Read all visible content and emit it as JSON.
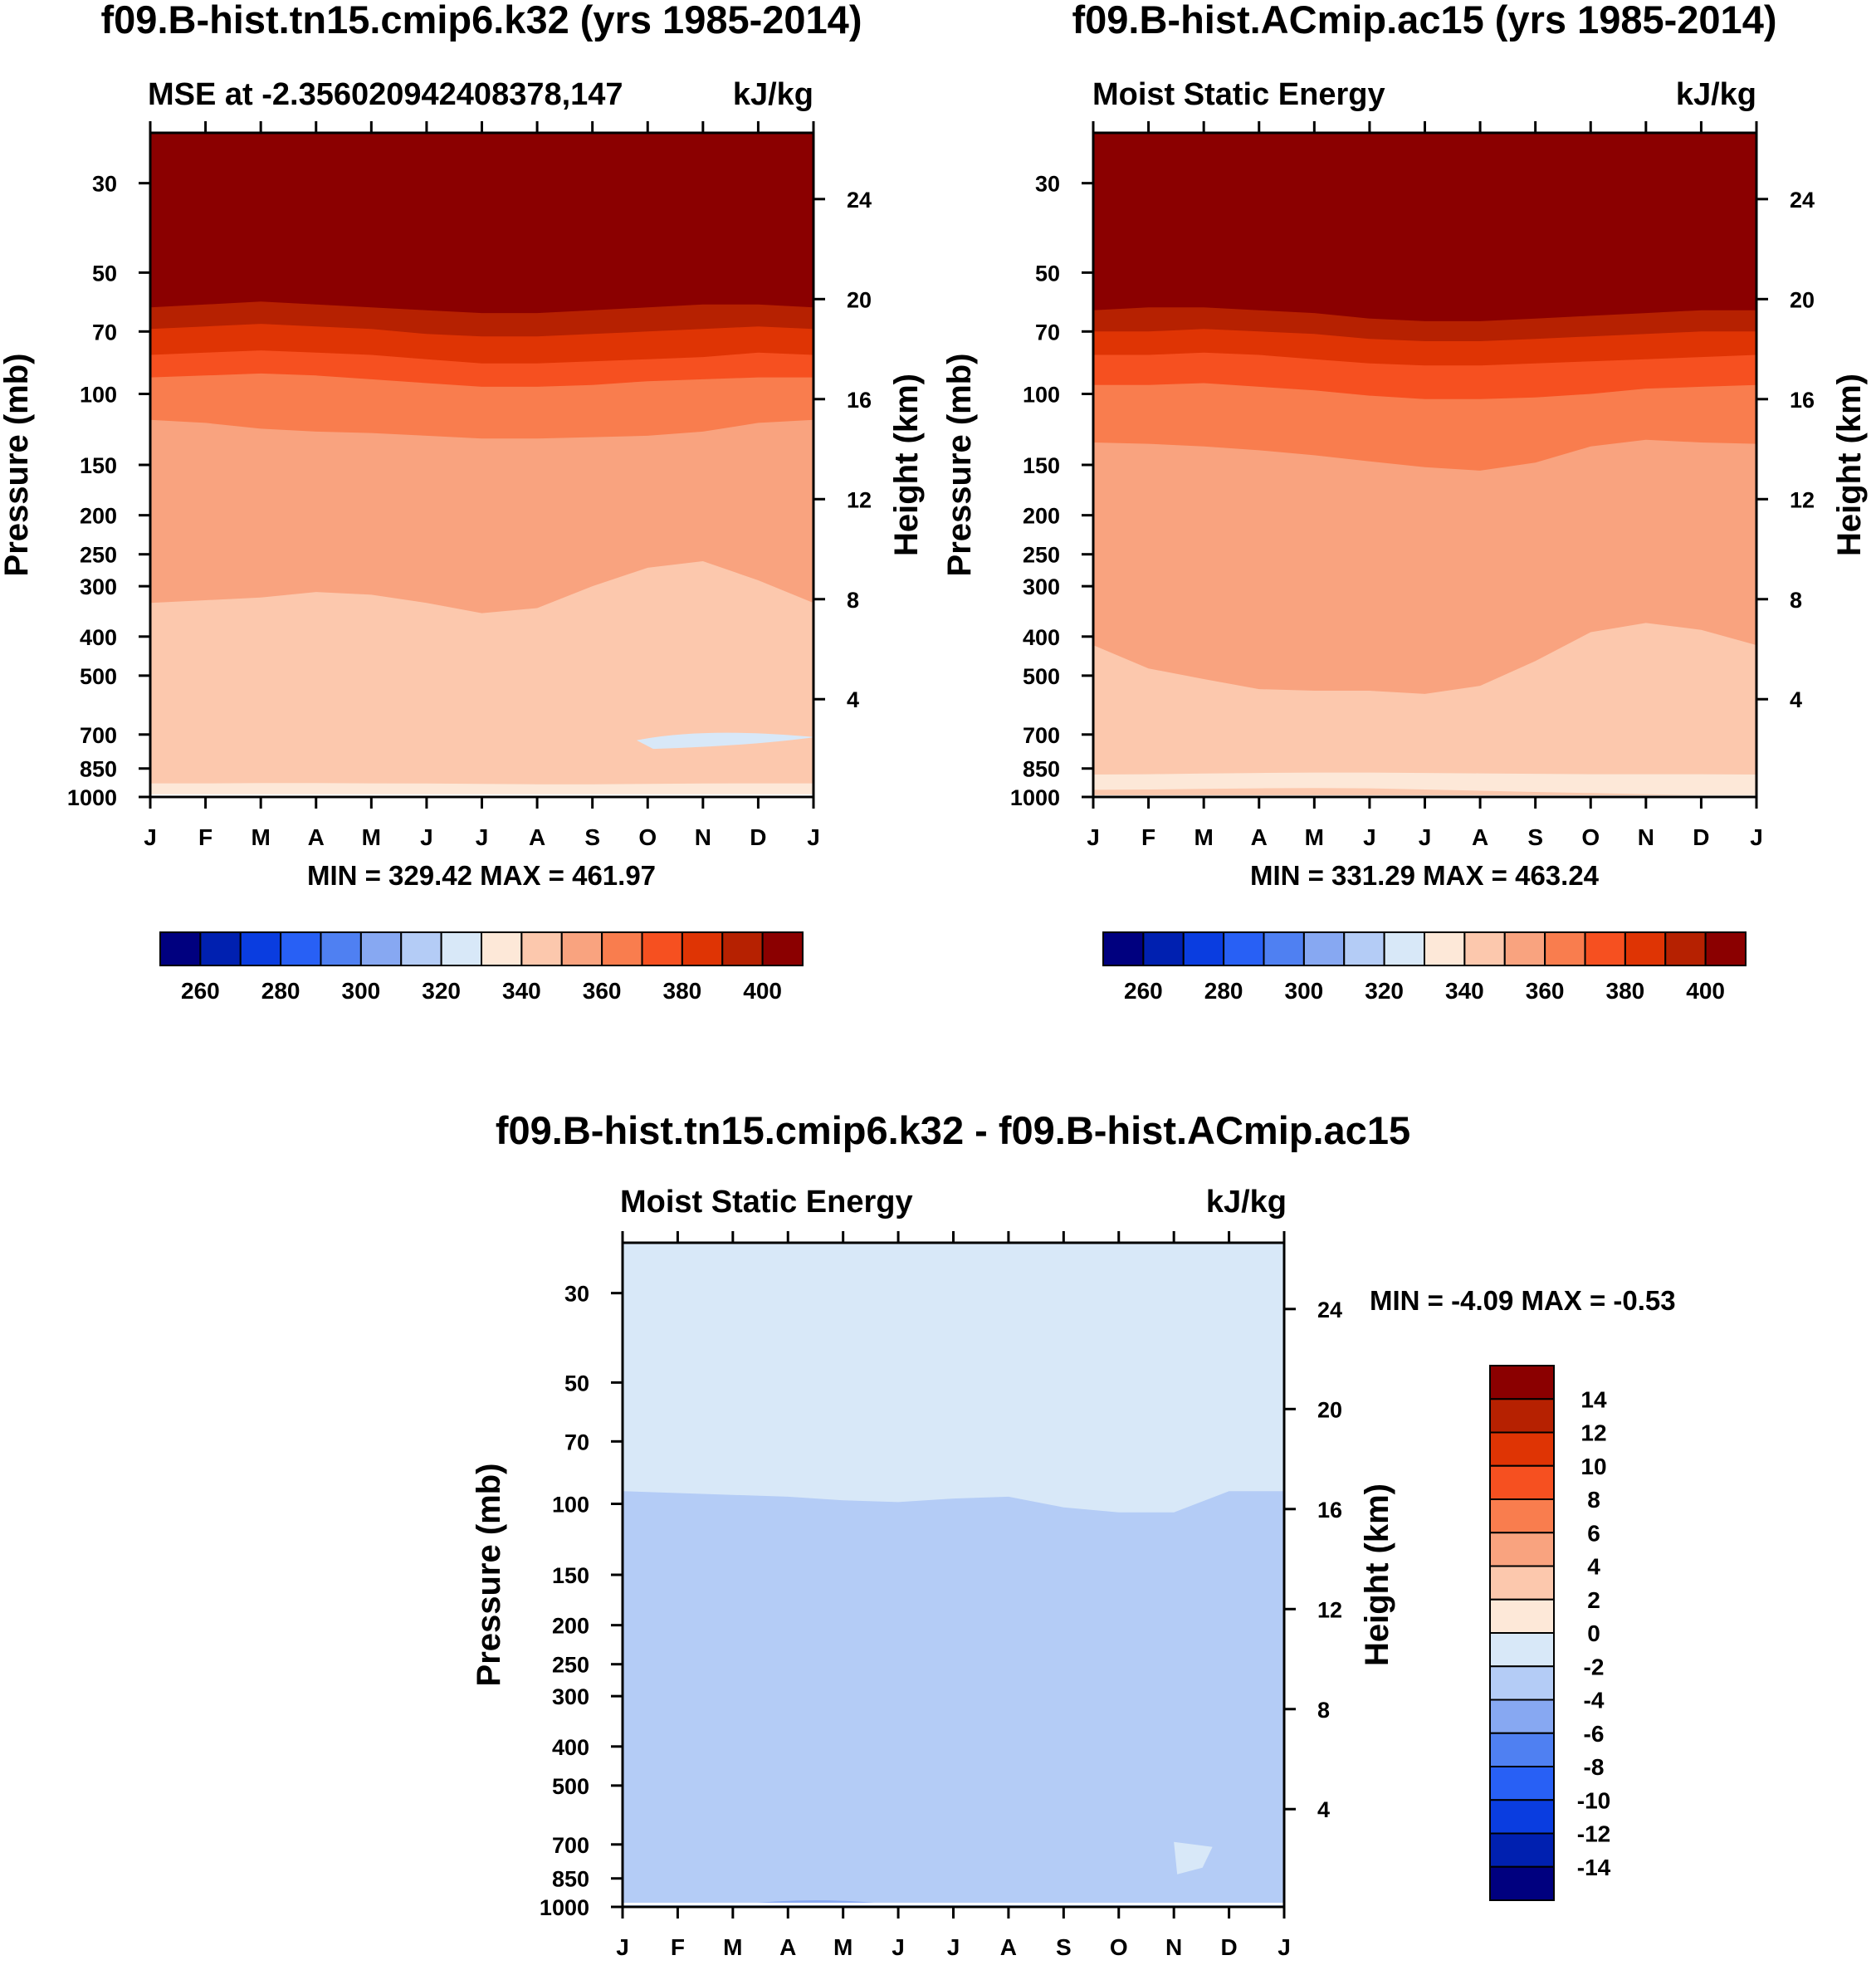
{
  "months": [
    "J",
    "F",
    "M",
    "A",
    "M",
    "J",
    "J",
    "A",
    "S",
    "O",
    "N",
    "D",
    "J"
  ],
  "pressure_ticks": [
    30,
    50,
    70,
    100,
    150,
    200,
    250,
    300,
    400,
    500,
    700,
    850,
    1000
  ],
  "height_ticks": [
    24,
    20,
    16,
    12,
    8,
    4
  ],
  "ylabel_left": "Pressure (mb)",
  "ylabel_right": "Height (km)",
  "units": "kJ/kg",
  "abs_palette": [
    "#00007f",
    "#0020b0",
    "#0a3de0",
    "#2860f5",
    "#4f80f2",
    "#87a8f2",
    "#b4ccf6",
    "#d8e8f8",
    "#fde8d8",
    "#fcc8ad",
    "#f9a37f",
    "#f97d4e",
    "#f65020",
    "#df3404",
    "#b62101",
    "#8b0000"
  ],
  "diff_palette": [
    "#00007f",
    "#0020b0",
    "#0a3de0",
    "#2860f5",
    "#4f80f2",
    "#87a8f2",
    "#b4ccf6",
    "#d8e8f8",
    "#fde8d8",
    "#fcc8ad",
    "#f9a37f",
    "#f97d4e",
    "#f65020",
    "#df3404",
    "#b62101",
    "#8b0000"
  ],
  "chart_data": [
    {
      "type": "heatmap",
      "panel": "top-left",
      "title": "f09.B-hist.tn15.cmip6.k32 (yrs 1985-2014)",
      "subtitle_left": "MSE at -2.356020942408378,147",
      "subtitle_right": "kJ/kg",
      "xlabel": "",
      "ylabel": "Pressure (mb)",
      "ylabel_right": "Height (km)",
      "stats": "MIN = 329.42 MAX = 461.97",
      "min": 329.42,
      "max": 461.97,
      "colorbar_labels": [
        "260",
        "280",
        "300",
        "320",
        "340",
        "360",
        "380",
        "400"
      ],
      "contour_levels": [
        250,
        260,
        270,
        280,
        290,
        300,
        310,
        320,
        330,
        340,
        350,
        360,
        370,
        380,
        390,
        400
      ],
      "boundaries_p": [
        [
          61,
          60,
          59,
          60,
          61,
          62,
          63,
          63,
          62,
          61,
          60,
          60,
          61
        ],
        [
          69,
          68,
          67,
          68,
          69,
          71,
          72,
          72,
          71,
          70,
          69,
          68,
          69
        ],
        [
          80,
          79,
          78,
          79,
          80,
          82,
          84,
          84,
          83,
          82,
          81,
          79,
          80
        ],
        [
          91,
          90,
          89,
          90,
          92,
          94,
          96,
          96,
          95,
          93,
          92,
          91,
          91
        ],
        [
          116,
          118,
          122,
          124,
          125,
          127,
          129,
          129,
          128,
          127,
          124,
          118,
          116
        ],
        [
          330,
          325,
          320,
          310,
          315,
          330,
          350,
          340,
          300,
          270,
          260,
          290,
          330
        ],
        [
          925,
          925,
          924,
          924,
          925,
          926,
          928,
          930,
          930,
          928,
          926,
          925,
          925
        ],
        [
          990,
          990,
          990,
          990,
          990,
          990,
          990,
          990,
          990,
          990,
          990,
          990,
          990
        ]
      ],
      "boundary_levels_between": [
        "400+",
        "390-400",
        "380-390",
        "370-380",
        "360-370",
        "350-360",
        "340-350",
        "330-340",
        "340-350"
      ],
      "blob": {
        "value_band": "320-330",
        "p_range": [
          690,
          760
        ],
        "month_range": [
          8.8,
          12.0
        ]
      }
    },
    {
      "type": "heatmap",
      "panel": "top-right",
      "title": "f09.B-hist.ACmip.ac15 (yrs 1985-2014)",
      "subtitle_left": "Moist Static Energy",
      "subtitle_right": "kJ/kg",
      "xlabel": "",
      "ylabel": "Pressure (mb)",
      "ylabel_right": "Height (km)",
      "stats": "MIN = 331.29 MAX = 463.24",
      "min": 331.29,
      "max": 463.24,
      "colorbar_labels": [
        "260",
        "280",
        "300",
        "320",
        "340",
        "360",
        "380",
        "400"
      ],
      "contour_levels": [
        250,
        260,
        270,
        280,
        290,
        300,
        310,
        320,
        330,
        340,
        350,
        360,
        370,
        380,
        390,
        400
      ],
      "boundaries_p": [
        [
          62,
          61,
          61,
          62,
          63,
          65,
          66,
          66,
          65,
          64,
          63,
          62,
          62
        ],
        [
          70,
          70,
          69,
          70,
          71,
          73,
          74,
          74,
          73,
          72,
          71,
          70,
          70
        ],
        [
          80,
          80,
          79,
          80,
          82,
          84,
          85,
          85,
          84,
          83,
          82,
          81,
          80
        ],
        [
          95,
          95,
          94,
          96,
          98,
          101,
          103,
          103,
          102,
          100,
          97,
          96,
          95
        ],
        [
          132,
          133,
          135,
          138,
          142,
          147,
          152,
          155,
          148,
          135,
          130,
          132,
          133
        ],
        [
          420,
          480,
          510,
          540,
          545,
          545,
          555,
          530,
          460,
          390,
          370,
          385,
          420
        ],
        [
          880,
          878,
          875,
          872,
          870,
          870,
          872,
          874,
          876,
          878,
          878,
          878,
          880
        ],
        [
          960,
          958,
          955,
          952,
          950,
          952,
          958,
          965,
          972,
          978,
          985,
          990,
          990
        ]
      ],
      "boundary_levels_between": [
        "400+",
        "390-400",
        "380-390",
        "370-380",
        "360-370",
        "350-360",
        "340-350",
        "330-340",
        "340-350"
      ],
      "blob": null
    },
    {
      "type": "heatmap",
      "panel": "bottom",
      "title": "f09.B-hist.tn15.cmip6.k32 - f09.B-hist.ACmip.ac15",
      "subtitle_left": "Moist Static Energy",
      "subtitle_right": "kJ/kg",
      "xlabel": "",
      "ylabel": "Pressure (mb)",
      "ylabel_right": "Height (km)",
      "stats": "MIN =  -4.09 MAX =  -0.53",
      "min": -4.09,
      "max": -0.53,
      "colorbar_labels": [
        "14",
        "12",
        "10",
        "8",
        "6",
        "4",
        "2",
        "0",
        "-2",
        "-4",
        "-6",
        "-8",
        "-10",
        "-12",
        "-14"
      ],
      "contour_levels": [
        -14,
        -12,
        -10,
        -8,
        -6,
        -4,
        -2,
        0,
        2,
        4,
        6,
        8,
        10,
        12,
        14
      ],
      "boundaries_p": [
        [
          93,
          94,
          95,
          96,
          98,
          99,
          97,
          96,
          102,
          105,
          105,
          93,
          93
        ]
      ],
      "boundary_levels_between": [
        "-2-0",
        "-4--2"
      ],
      "blob": {
        "value_band": "-2-0",
        "p_range": [
          690,
          830
        ],
        "month_range": [
          10.0,
          10.7
        ]
      },
      "surface_band": {
        "value_band": "-6--4",
        "p_range": [
          960,
          1000
        ],
        "month_range": [
          2.0,
          5.0
        ]
      }
    }
  ]
}
